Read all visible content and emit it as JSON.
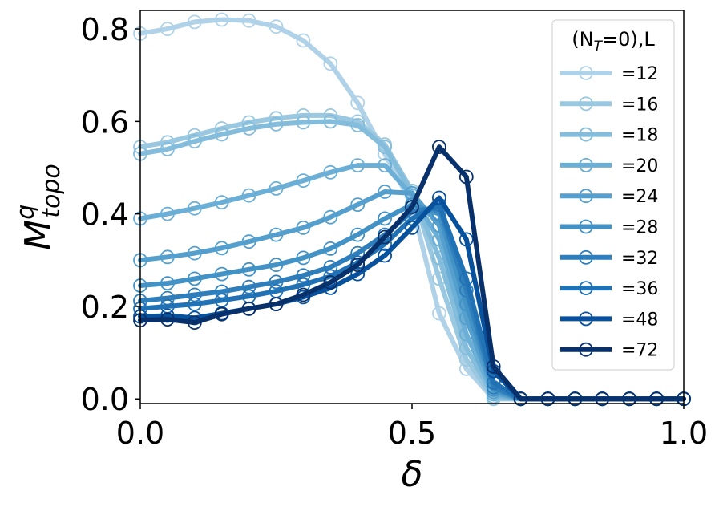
{
  "chart_data": {
    "type": "line",
    "xlabel": "δ",
    "ylabel": "M",
    "ylabel_sup": "q",
    "ylabel_sub": "topo",
    "xlim": [
      0.0,
      1.0
    ],
    "ylim": [
      -0.01,
      0.84
    ],
    "xticks": [
      0.0,
      0.5,
      1.0
    ],
    "xtick_labels": [
      "0.0",
      "0.5",
      "1.0"
    ],
    "yticks": [
      0.0,
      0.2,
      0.4,
      0.6,
      0.8
    ],
    "ytick_labels": [
      "0.0",
      "0.2",
      "0.4",
      "0.6",
      "0.8"
    ],
    "grid": false,
    "legend_placement": "top-right",
    "legend_title_prefix": "(N",
    "legend_title_sub": "T",
    "legend_title_suffix": "=0),L",
    "x": [
      0.0,
      0.05,
      0.1,
      0.15,
      0.2,
      0.25,
      0.3,
      0.35,
      0.4,
      0.45,
      0.5,
      0.55,
      0.6,
      0.65,
      0.7,
      0.75,
      0.8,
      0.85,
      0.9,
      0.95,
      1.0
    ],
    "series": [
      {
        "name": "=12",
        "color": "#b0d2e8",
        "values": [
          0.79,
          0.8,
          0.815,
          0.82,
          0.818,
          0.805,
          0.775,
          0.725,
          0.64,
          0.53,
          0.42,
          0.185,
          0.065,
          0.0,
          0.0,
          0.0,
          0.0,
          0.0,
          0.0,
          0.0,
          0.0
        ]
      },
      {
        "name": "=16",
        "color": "#9ac8e0",
        "values": [
          0.545,
          0.555,
          0.57,
          0.585,
          0.598,
          0.607,
          0.613,
          0.613,
          0.6,
          0.55,
          0.45,
          0.26,
          0.085,
          0.0,
          0.0,
          0.0,
          0.0,
          0.0,
          0.0,
          0.0,
          0.0
        ]
      },
      {
        "name": "=18",
        "color": "#84bcdb",
        "values": [
          0.53,
          0.54,
          0.557,
          0.572,
          0.585,
          0.594,
          0.598,
          0.6,
          0.592,
          0.545,
          0.445,
          0.305,
          0.11,
          0.005,
          0.0,
          0.0,
          0.0,
          0.0,
          0.0,
          0.0,
          0.0
        ]
      },
      {
        "name": "=20",
        "color": "#6baed6",
        "values": [
          0.39,
          0.4,
          0.412,
          0.425,
          0.44,
          0.455,
          0.472,
          0.49,
          0.505,
          0.505,
          0.44,
          0.345,
          0.14,
          0.01,
          0.0,
          0.0,
          0.0,
          0.0,
          0.0,
          0.0,
          0.0
        ]
      },
      {
        "name": "=24",
        "color": "#549fcd",
        "values": [
          0.3,
          0.307,
          0.315,
          0.326,
          0.34,
          0.355,
          0.37,
          0.393,
          0.42,
          0.448,
          0.445,
          0.375,
          0.175,
          0.015,
          0.0,
          0.0,
          0.0,
          0.0,
          0.0,
          0.0,
          0.0
        ]
      },
      {
        "name": "=28",
        "color": "#4292c6",
        "values": [
          0.245,
          0.25,
          0.26,
          0.27,
          0.28,
          0.29,
          0.305,
          0.325,
          0.355,
          0.39,
          0.42,
          0.4,
          0.205,
          0.02,
          0.0,
          0.0,
          0.0,
          0.0,
          0.0,
          0.0,
          0.0
        ]
      },
      {
        "name": "=32",
        "color": "#2f7ebc",
        "values": [
          0.212,
          0.218,
          0.225,
          0.232,
          0.242,
          0.253,
          0.267,
          0.285,
          0.315,
          0.355,
          0.405,
          0.415,
          0.235,
          0.025,
          0.0,
          0.0,
          0.0,
          0.0,
          0.0,
          0.0,
          0.0
        ]
      },
      {
        "name": "=36",
        "color": "#2171b5",
        "values": [
          0.195,
          0.2,
          0.205,
          0.213,
          0.222,
          0.233,
          0.247,
          0.265,
          0.295,
          0.335,
          0.39,
          0.42,
          0.26,
          0.035,
          0.0,
          0.0,
          0.0,
          0.0,
          0.0,
          0.0,
          0.0
        ]
      },
      {
        "name": "=48",
        "color": "#08519c",
        "values": [
          0.178,
          0.18,
          0.175,
          0.185,
          0.195,
          0.205,
          0.22,
          0.24,
          0.27,
          0.31,
          0.37,
          0.435,
          0.345,
          0.06,
          0.0,
          0.0,
          0.0,
          0.0,
          0.0,
          0.0,
          0.0
        ]
      },
      {
        "name": "=72",
        "color": "#08306b",
        "values": [
          0.17,
          0.172,
          0.165,
          0.183,
          0.195,
          0.205,
          0.225,
          0.252,
          0.29,
          0.35,
          0.415,
          0.545,
          0.48,
          0.07,
          0.0,
          0.0,
          0.0,
          0.0,
          0.0,
          0.0,
          0.0
        ]
      }
    ]
  }
}
